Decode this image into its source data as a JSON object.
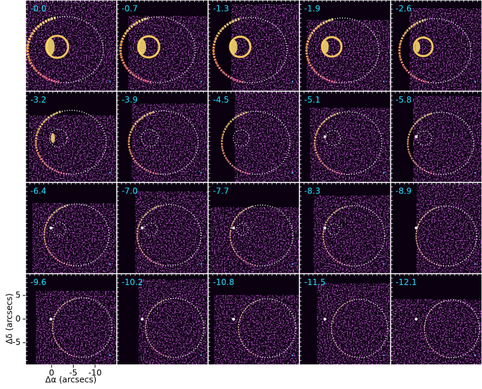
{
  "channel_labels": [
    "-0.0",
    "-0.7",
    "-1.3",
    "-1.9",
    "-2.6",
    "-3.2",
    "-3.9",
    "-4.5",
    "-5.1",
    "-5.8",
    "-6.4",
    "-7.0",
    "-7.7",
    "-8.3",
    "-8.9",
    "-9.6",
    "-10.2",
    "-10.8",
    "-11.5",
    "-12.1"
  ],
  "axes": {
    "x_label": "Δα (arcsecs)",
    "y_label": "Δδ (arcsecs)",
    "xlim": [
      6,
      -15
    ],
    "ylim": [
      -9.7,
      9.6
    ],
    "xticks": [
      0,
      -5,
      -10
    ],
    "yticks": [
      5,
      0,
      -5
    ]
  }
}
